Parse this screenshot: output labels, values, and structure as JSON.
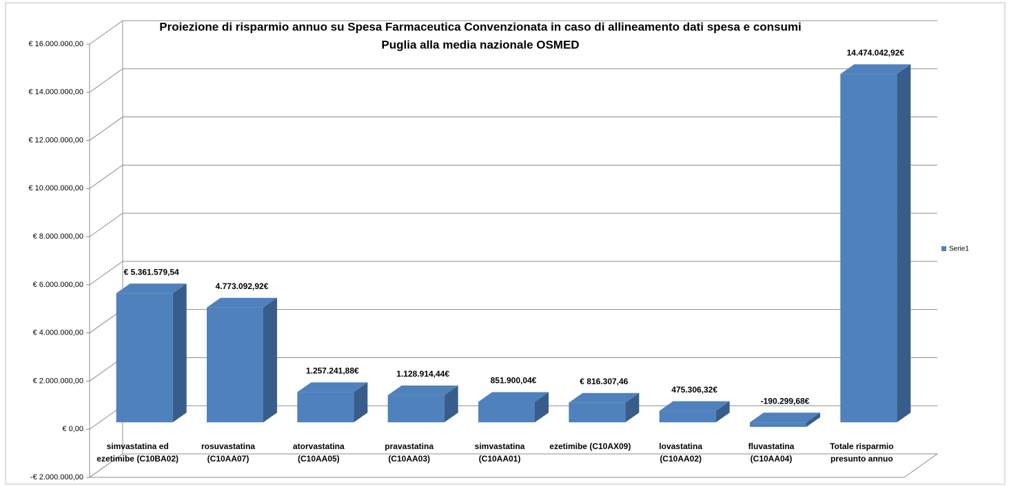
{
  "chart_data": {
    "type": "bar3d",
    "title": [
      "Proiezione di risparmio annuo su Spesa Farmaceutica Convenzionata in caso di allineamento dati spesa e consumi",
      "Puglia alla media nazionale OSMED"
    ],
    "categories": [
      "simvastatina ed ezetimibe (C10BA02)",
      "rosuvastatina (C10AA07)",
      "atorvastatina (C10AA05)",
      "pravastatina (C10AA03)",
      "simvastatina (C10AA01)",
      "ezetimibe (C10AX09)",
      "lovastatina (C10AA02)",
      "fluvastatina (C10AA04)",
      "Totale risparmio presunto annuo"
    ],
    "series": [
      {
        "name": "Serie1",
        "color": "#4f81bd",
        "values": [
          5361579.54,
          4773092.92,
          1257241.88,
          1128914.44,
          851900.04,
          816307.46,
          475306.32,
          -190299.68,
          14474042.92
        ],
        "value_labels": [
          "€ 5.361.579,54",
          "4.773.092,92€",
          "1.257.241,88€",
          "1.128.914,44€",
          "851.900,04€",
          "€ 816.307,46",
          "475.306,32€",
          "-190.299,68€",
          "14.474.042,92€"
        ]
      }
    ],
    "ylim": [
      -2000000,
      16000000
    ],
    "yticks": [
      {
        "value": -2000000,
        "label": "-€ 2.000.000,00"
      },
      {
        "value": 0,
        "label": "€ 0,00"
      },
      {
        "value": 2000000,
        "label": "€ 2.000.000,00"
      },
      {
        "value": 4000000,
        "label": "€ 4.000.000,00"
      },
      {
        "value": 6000000,
        "label": "€ 6.000.000,00"
      },
      {
        "value": 8000000,
        "label": "€ 8.000.000,00"
      },
      {
        "value": 10000000,
        "label": "€ 10.000.000,00"
      },
      {
        "value": 12000000,
        "label": "€ 12.000.000,00"
      },
      {
        "value": 14000000,
        "label": "€ 14.000.000,00"
      },
      {
        "value": 16000000,
        "label": "€ 16.000.000,00"
      }
    ],
    "grid": true,
    "legend": "right"
  }
}
